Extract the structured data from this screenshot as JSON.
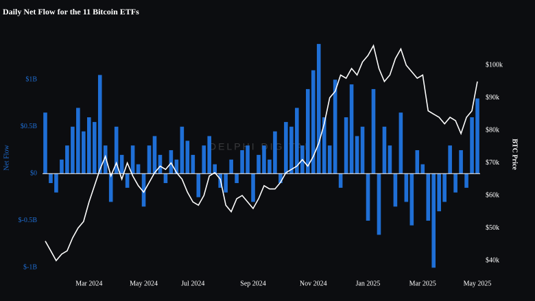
{
  "chart_data": {
    "type": "bar",
    "title": "Daily Net Flow for the 11 Bitcoin ETFs",
    "watermark": "DELPHI DIGITAL",
    "ylabel": "Net Flow",
    "y2label": "BTC Price",
    "categories": [
      null,
      null,
      null,
      null,
      null,
      null,
      null,
      null,
      "Mar 2024",
      null,
      null,
      null,
      null,
      null,
      null,
      null,
      null,
      null,
      "May 2024",
      null,
      null,
      null,
      null,
      null,
      null,
      null,
      null,
      "Jul 2024",
      null,
      null,
      null,
      null,
      null,
      null,
      null,
      null,
      null,
      null,
      "Sep 2024",
      null,
      null,
      null,
      null,
      null,
      null,
      null,
      null,
      null,
      null,
      "Nov 2024",
      null,
      null,
      null,
      null,
      null,
      null,
      null,
      null,
      null,
      "Jan 2025",
      null,
      null,
      null,
      null,
      null,
      null,
      null,
      null,
      null,
      "Mar 2025",
      null,
      null,
      null,
      null,
      null,
      null,
      null,
      null,
      null,
      "May 2025"
    ],
    "series": [
      {
        "color": "#1f6fd6",
        "values": [
          0.65,
          -0.1,
          -0.2,
          0.15,
          0.3,
          0.5,
          0.7,
          0.45,
          0.6,
          0.55,
          1.05,
          0.3,
          -0.3,
          0.5,
          0.2,
          -0.15,
          0.3,
          0.1,
          -0.35,
          0.3,
          0.4,
          0.2,
          -0.1,
          0.25,
          0.15,
          0.5,
          0.35,
          0.2,
          -0.25,
          0.3,
          0.4,
          0.1,
          -0.15,
          -0.2,
          0.15,
          -0.1,
          0.25,
          0.3,
          -0.3,
          0.2,
          0.3,
          0.15,
          0.45,
          -0.1,
          0.55,
          0.5,
          0.7,
          0.3,
          0.9,
          1.1,
          1.38,
          0.6,
          0.3,
          1.0,
          -0.15,
          0.6,
          0.95,
          0.4,
          0.5,
          -0.5,
          0.9,
          -0.65,
          0.5,
          0.3,
          -0.35,
          0.65,
          -0.3,
          -0.55,
          0.25,
          0.1,
          -0.5,
          -1.0,
          -0.4,
          -0.3,
          0.3,
          -0.2,
          0.25,
          -0.15,
          0.6,
          0.8
        ]
      },
      {
        "type": "line",
        "axis": "y2",
        "color": "#ffffff",
        "values": [
          46,
          43,
          40,
          42,
          43,
          47,
          50,
          52,
          58,
          63,
          68,
          72,
          66,
          70,
          65,
          70,
          66,
          63,
          61,
          64,
          67,
          69,
          68,
          70,
          67,
          65,
          61,
          58,
          57,
          60,
          66,
          67,
          65,
          57,
          55,
          59,
          60,
          58,
          56,
          59,
          63,
          62,
          62,
          64,
          67,
          68,
          69,
          71,
          69,
          72,
          76,
          82,
          90,
          92,
          97,
          96,
          99,
          97,
          101,
          103,
          106,
          99,
          95,
          97,
          102,
          105,
          100,
          98,
          96,
          97,
          86,
          85,
          84,
          82,
          84,
          83,
          79,
          84,
          86,
          95
        ]
      }
    ],
    "ylim": [
      -1.07,
      1.41
    ],
    "yticks": [
      {
        "value": -1,
        "label": "$-1B"
      },
      {
        "value": -0.5,
        "label": "$-0.5B"
      },
      {
        "value": 0,
        "label": "$0"
      },
      {
        "value": 0.5,
        "label": "$0.5B"
      },
      {
        "value": 1,
        "label": "$1B"
      }
    ],
    "y2lim": [
      35.8,
      107.4
    ],
    "y2ticks": [
      {
        "value": 40,
        "label": "$40k"
      },
      {
        "value": 50,
        "label": "$50k"
      },
      {
        "value": 60,
        "label": "$60k"
      },
      {
        "value": 70,
        "label": "$70k"
      },
      {
        "value": 80,
        "label": "$80k"
      },
      {
        "value": 90,
        "label": "$90k"
      },
      {
        "value": 100,
        "label": "$100k"
      }
    ],
    "grid": false
  }
}
